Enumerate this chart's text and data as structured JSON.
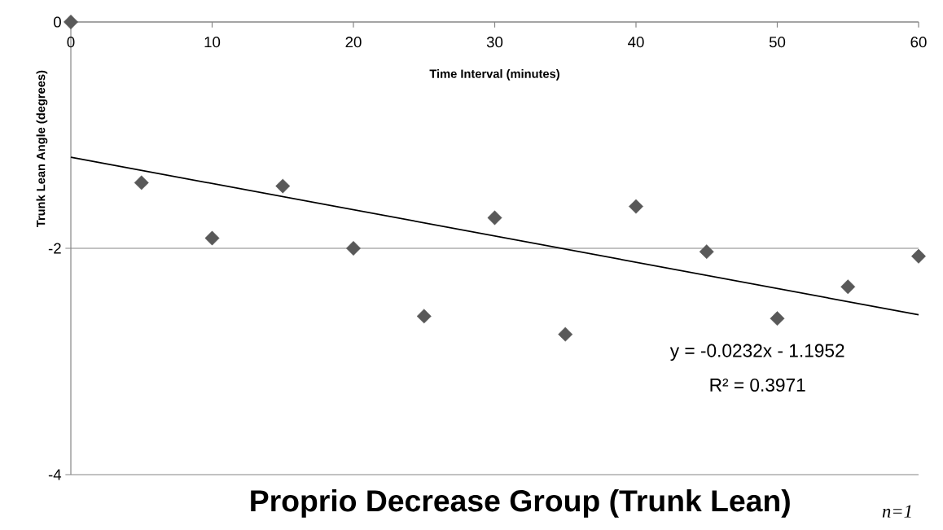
{
  "chart_data": {
    "type": "scatter",
    "title": "Proprio Decrease Group (Trunk Lean)",
    "xlabel": "Time Interval (minutes)",
    "ylabel": "Trunk Lean Angle (degrees)",
    "x": [
      0,
      5,
      10,
      15,
      20,
      25,
      30,
      35,
      40,
      45,
      50,
      55,
      60
    ],
    "series": [
      {
        "color": "#595959",
        "marker": "diamond",
        "values": [
          0,
          -1.42,
          -1.91,
          -1.45,
          -2.0,
          -2.6,
          -1.73,
          -2.76,
          -1.63,
          -2.03,
          -2.62,
          -2.34,
          -2.07
        ]
      },
      {
        "type": "line",
        "color": "#000000",
        "marker": "none",
        "line_style": "solid",
        "x": [
          0,
          60
        ],
        "values": [
          -1.195,
          -2.587
        ]
      }
    ],
    "xlim": [
      0,
      60
    ],
    "xticks": [
      0,
      10,
      20,
      30,
      40,
      50,
      60
    ],
    "ylim": [
      -4,
      0
    ],
    "yticks": [
      -4,
      -2,
      0
    ],
    "grid": "y",
    "annotations": [
      "y = -0.0232x - 1.1952",
      "R² = 0.3971",
      "n=1"
    ]
  }
}
